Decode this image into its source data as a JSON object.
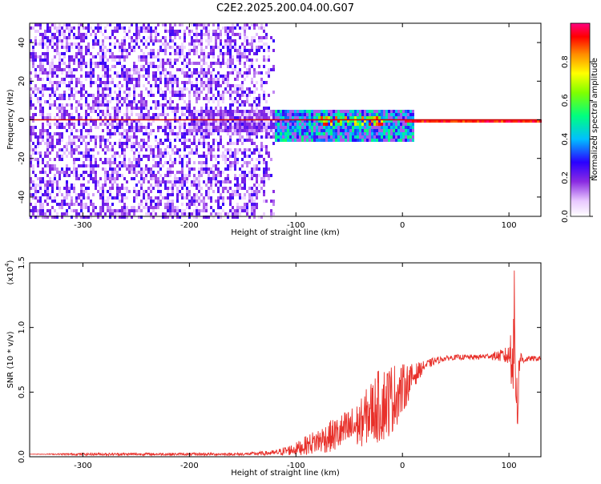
{
  "title": "C2E2.2025.200.04.00.G07",
  "chart_data": [
    {
      "type": "heatmap",
      "xlabel": "Height of straight line (km)",
      "ylabel": "Frequency (Hz)",
      "xlim": [
        -350,
        130
      ],
      "ylim": [
        -50,
        50
      ],
      "xticks": [
        -300,
        -200,
        -100,
        0,
        100
      ],
      "yticks": [
        -40,
        -20,
        0,
        20,
        40
      ],
      "xtick_labels": [
        "-300",
        "-200",
        "-100",
        "0",
        "100"
      ],
      "ytick_labels": [
        "-40",
        "-20",
        "0",
        "20",
        "40"
      ],
      "colorbar": {
        "label": "Normalized spectral amplitude",
        "range": [
          0.0,
          1.0
        ],
        "ticks": [
          0.0,
          0.2,
          0.4,
          0.6,
          0.8
        ],
        "tick_labels": [
          "0.0",
          "0.2",
          "0.4",
          "0.6",
          "0.8"
        ]
      },
      "regions": [
        {
          "x_range": [
            -350,
            -120
          ],
          "freq_range": [
            -50,
            50
          ],
          "amplitude": 0.1,
          "pattern": "scattered noise"
        },
        {
          "x_range": [
            -200,
            -120
          ],
          "freq_range": [
            -6,
            6
          ],
          "amplitude": 0.2,
          "pattern": "weak signal near 0 Hz"
        },
        {
          "x_range": [
            -120,
            10
          ],
          "freq_range": [
            -10,
            6
          ],
          "amplitude": 0.5,
          "pattern": "signal band around 0 Hz"
        },
        {
          "x_range": [
            -80,
            -20
          ],
          "freq_range": [
            -2,
            2
          ],
          "amplitude": 0.85,
          "pattern": "strong signal near 0 Hz"
        },
        {
          "x_range": [
            0,
            130
          ],
          "freq_range": [
            -1,
            1
          ],
          "amplitude": 1.0,
          "pattern": "narrow line at 0 Hz"
        }
      ],
      "colors": {
        "low": "#6a00ff",
        "mid": "#00ffff",
        "high": "#ff0000"
      }
    },
    {
      "type": "line",
      "xlabel": "Height of straight line (km)",
      "ylabel": "SNR (10 * v/v)",
      "yscale_label": "(x10",
      "yscale_exp": "4",
      "yscale_close": ")",
      "xlim": [
        -350,
        130
      ],
      "ylim": [
        0.0,
        1.5
      ],
      "xticks": [
        -300,
        -200,
        -100,
        0,
        100
      ],
      "yticks": [
        0.0,
        0.5,
        1.0,
        1.5
      ],
      "xtick_labels": [
        "-300",
        "-200",
        "-100",
        "0",
        "100"
      ],
      "ytick_labels": [
        "0.0",
        "0.5",
        "1.0",
        "1.5"
      ],
      "line_color": "#e8302a",
      "series": [
        {
          "x": [
            -350,
            -300,
            -250,
            -200,
            -150,
            -120,
            -100,
            -80,
            -60,
            -40,
            -30,
            -20,
            -10,
            0,
            10,
            20,
            30,
            40,
            50,
            60,
            70,
            80,
            90,
            100,
            105,
            108,
            110,
            115,
            120,
            130
          ],
          "y": [
            0.02,
            0.02,
            0.02,
            0.02,
            0.02,
            0.03,
            0.06,
            0.12,
            0.18,
            0.25,
            0.35,
            0.4,
            0.45,
            0.52,
            0.62,
            0.7,
            0.74,
            0.76,
            0.77,
            0.77,
            0.77,
            0.78,
            0.78,
            0.78,
            0.9,
            0.4,
            0.76,
            0.75,
            0.76,
            0.76
          ],
          "envelope": [
            0.0,
            0.01,
            0.01,
            0.01,
            0.01,
            0.02,
            0.05,
            0.1,
            0.14,
            0.18,
            0.24,
            0.3,
            0.28,
            0.2,
            0.1,
            0.04,
            0.03,
            0.02,
            0.02,
            0.02,
            0.02,
            0.02,
            0.04,
            0.08,
            0.55,
            0.3,
            0.08,
            0.02,
            0.02,
            0.02
          ]
        }
      ]
    }
  ]
}
